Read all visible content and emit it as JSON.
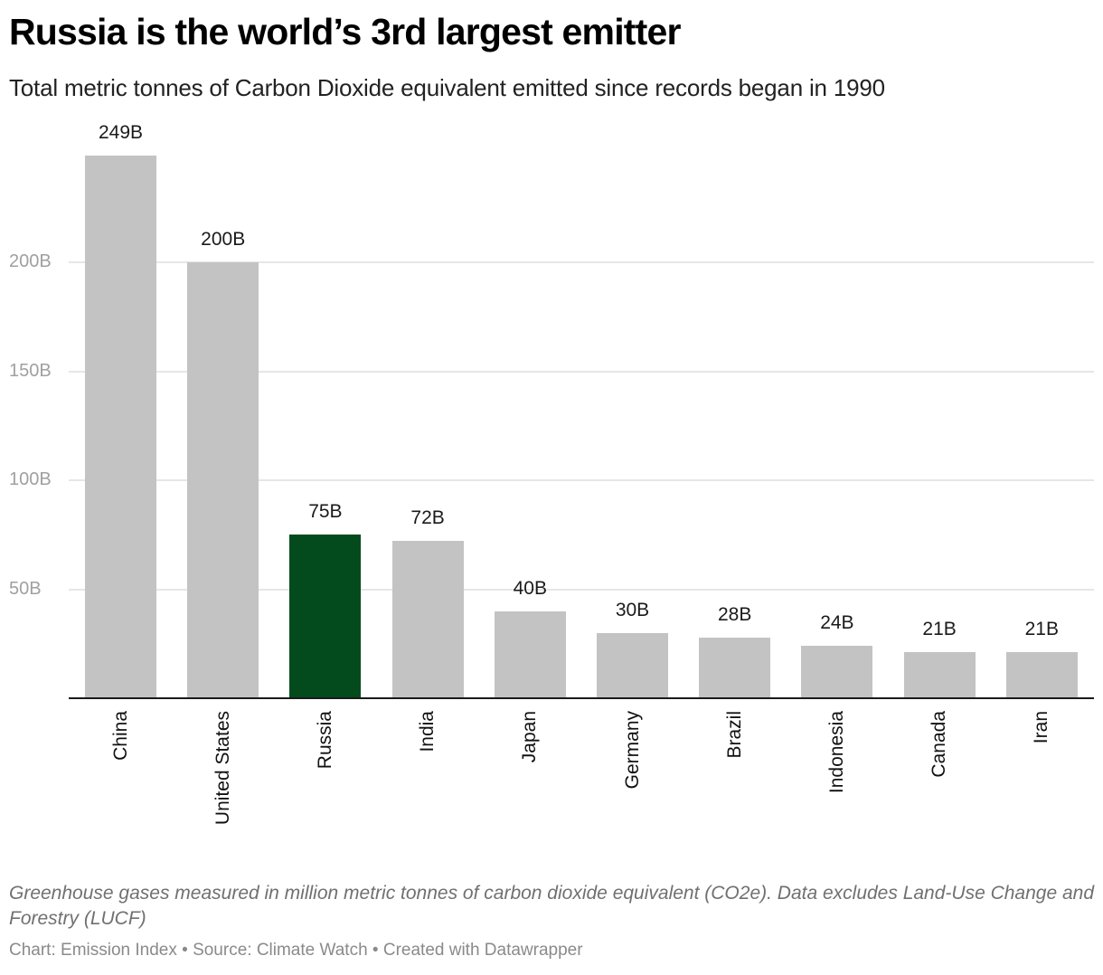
{
  "header": {
    "title": "Russia is the world’s 3rd largest emitter",
    "subtitle": "Total metric tonnes of Carbon Dioxide equivalent emitted since records began in 1990"
  },
  "y_axis": {
    "ticks": [
      {
        "label": "200B",
        "value": 200
      },
      {
        "label": "150B",
        "value": 150
      },
      {
        "label": "100B",
        "value": 100
      },
      {
        "label": "50B",
        "value": 50
      }
    ]
  },
  "colors": {
    "bar_default": "#c3c3c3",
    "bar_highlight": "#034a1c",
    "gridline": "#e6e6e6",
    "axis": "#1a1a1a"
  },
  "bars": [
    {
      "country": "China",
      "label": "249B",
      "value": 249,
      "highlight": false
    },
    {
      "country": "United States",
      "label": "200B",
      "value": 200,
      "highlight": false
    },
    {
      "country": "Russia",
      "label": "75B",
      "value": 75,
      "highlight": true
    },
    {
      "country": "India",
      "label": "72B",
      "value": 72,
      "highlight": false
    },
    {
      "country": "Japan",
      "label": "40B",
      "value": 40,
      "highlight": false
    },
    {
      "country": "Germany",
      "label": "30B",
      "value": 30,
      "highlight": false
    },
    {
      "country": "Brazil",
      "label": "28B",
      "value": 28,
      "highlight": false
    },
    {
      "country": "Indonesia",
      "label": "24B",
      "value": 24,
      "highlight": false
    },
    {
      "country": "Canada",
      "label": "21B",
      "value": 21,
      "highlight": false
    },
    {
      "country": "Iran",
      "label": "21B",
      "value": 21,
      "highlight": false
    }
  ],
  "footer": {
    "notes": "Greenhouse gases measured in million metric tonnes of carbon dioxide equivalent (CO2e). Data excludes Land-Use Change and Forestry (LUCF)",
    "credits": "Chart: Emission Index • Source: Climate Watch • Created with Datawrapper"
  },
  "chart_data": {
    "type": "bar",
    "title": "Russia is the world’s 3rd largest emitter",
    "subtitle": "Total metric tonnes of Carbon Dioxide equivalent emitted since records began in 1990",
    "categories": [
      "China",
      "United States",
      "Russia",
      "India",
      "Japan",
      "Germany",
      "Brazil",
      "Indonesia",
      "Canada",
      "Iran"
    ],
    "values": [
      249,
      200,
      75,
      72,
      40,
      30,
      28,
      24,
      21,
      21
    ],
    "value_labels": [
      "249B",
      "200B",
      "75B",
      "72B",
      "40B",
      "30B",
      "28B",
      "24B",
      "21B",
      "21B"
    ],
    "unit": "billion metric tonnes CO2e",
    "highlighted_category": "Russia",
    "xlabel": "",
    "ylabel": "",
    "yticks": [
      "50B",
      "100B",
      "150B",
      "200B"
    ],
    "ylim": [
      0,
      250
    ],
    "grid": true,
    "legend": null,
    "notes": "Greenhouse gases measured in million metric tonnes of carbon dioxide equivalent (CO2e). Data excludes Land-Use Change and Forestry (LUCF)",
    "source": "Chart: Emission Index • Source: Climate Watch • Created with Datawrapper"
  }
}
